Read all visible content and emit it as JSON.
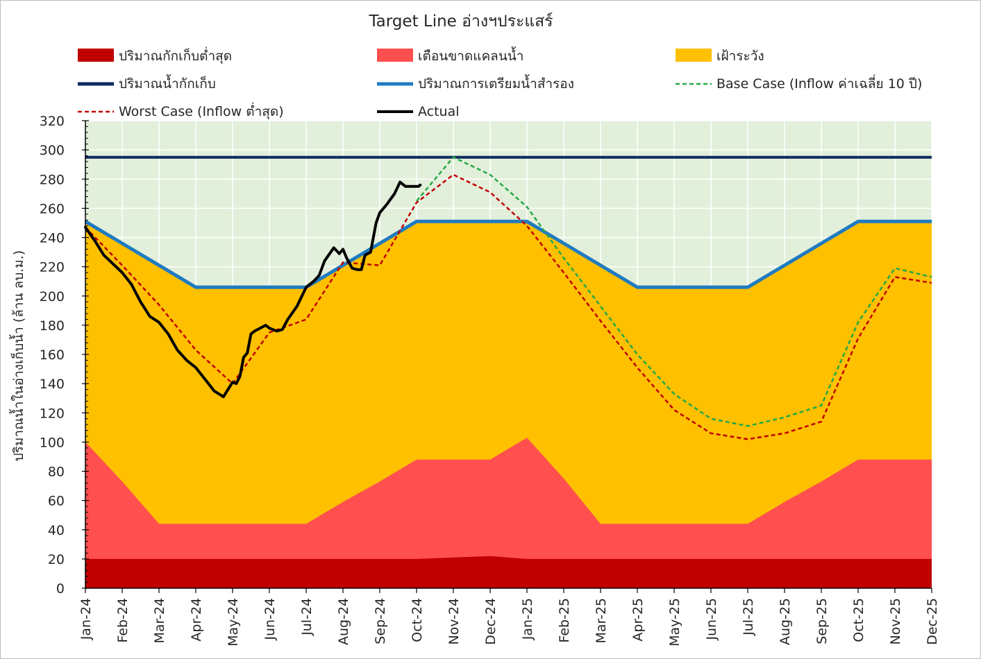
{
  "chart_data": {
    "type": "area",
    "title": "Target Line อ่างฯประแสร์",
    "xlabel": "",
    "ylabel": "ปริมาณน้ำในอ่างเก็บน้ำ (ล้าน ลบ.ม.)",
    "ylim": [
      0,
      320
    ],
    "yticks": [
      0,
      20,
      40,
      60,
      80,
      100,
      120,
      140,
      160,
      180,
      200,
      220,
      240,
      260,
      280,
      300,
      320
    ],
    "categories": [
      "Jan-24",
      "Feb-24",
      "Mar-24",
      "Apr-24",
      "May-24",
      "Jun-24",
      "Jul-24",
      "Aug-24",
      "Sep-24",
      "Oct-24",
      "Nov-24",
      "Dec-24",
      "Jan-25",
      "Feb-25",
      "Mar-25",
      "Apr-25",
      "May-25",
      "Jun-25",
      "Jul-25",
      "Aug-25",
      "Sep-25",
      "Oct-25",
      "Nov-25",
      "Dec-25"
    ],
    "grid": true,
    "legend_position": "top",
    "legend_entries": [
      "ปริมาณกักเก็บต่ำสุด",
      "เตือนขาดแคลนน้ำ",
      "เฝ้าระวัง",
      "ปริมาณน้ำกักเก็บ",
      "ปริมาณการเตรียมน้ำสำรอง",
      "Base Case (Inflow ค่าเฉลี่ย 10 ปี)",
      "Worst Case (Inflow ต่ำสุด)",
      "Actual"
    ],
    "colors": {
      "plot_background": "#e2efda",
      "min_storage": "#c00000",
      "shortage_warning": "#ff4f4f",
      "watch": "#ffc000",
      "capacity": "#0d2a5e",
      "reserve": "#1f7bc1",
      "base_case": "#22a845",
      "worst_case": "#c00000",
      "actual": "#000000"
    },
    "series": [
      {
        "name": "ปริมาณกักเก็บต่ำสุด",
        "kind": "area",
        "values": [
          20,
          20,
          20,
          20,
          20,
          20,
          20,
          20,
          20,
          20,
          21,
          22,
          20,
          20,
          20,
          20,
          20,
          20,
          20,
          20,
          20,
          20,
          20,
          20
        ]
      },
      {
        "name": "เตือนขาดแคลนน้ำ",
        "kind": "area",
        "values": [
          100,
          73,
          44,
          44,
          44,
          44,
          44,
          59,
          73,
          88,
          88,
          88,
          103,
          75,
          44,
          44,
          44,
          44,
          44,
          59,
          73,
          88,
          88,
          88
        ]
      },
      {
        "name": "เฝ้าระวัง",
        "kind": "area",
        "values": [
          251,
          236,
          221,
          206,
          206,
          206,
          206,
          221,
          236,
          251,
          251,
          251,
          251,
          236,
          221,
          206,
          206,
          206,
          206,
          221,
          236,
          251,
          251,
          251
        ]
      },
      {
        "name": "ปริมาณน้ำกักเก็บ",
        "kind": "line",
        "values": [
          295,
          295,
          295,
          295,
          295,
          295,
          295,
          295,
          295,
          295,
          295,
          295,
          295,
          295,
          295,
          295,
          295,
          295,
          295,
          295,
          295,
          295,
          295,
          295
        ]
      },
      {
        "name": "ปริมาณการเตรียมน้ำสำรอง",
        "kind": "line",
        "values": [
          251,
          236,
          221,
          206,
          206,
          206,
          206,
          221,
          236,
          251,
          251,
          251,
          251,
          236,
          221,
          206,
          206,
          206,
          206,
          221,
          236,
          251,
          251,
          251
        ]
      },
      {
        "name": "Base Case (Inflow ค่าเฉลี่ย 10 ปี)",
        "kind": "dashed",
        "x": [
          9,
          10,
          11,
          12,
          13,
          14,
          15,
          16,
          17,
          18,
          19,
          20,
          21,
          22,
          23
        ],
        "values": [
          265,
          295,
          283,
          261,
          226,
          193,
          160,
          133,
          116,
          111,
          117,
          125,
          182,
          219,
          213
        ]
      },
      {
        "name": "Worst Case (Inflow ต่ำสุด)",
        "kind": "dashed",
        "x": [
          0,
          1,
          2,
          3,
          4,
          5,
          6,
          7,
          8,
          9,
          10,
          11,
          12,
          13,
          14,
          15,
          16,
          17,
          18,
          19,
          20,
          21,
          22,
          23
        ],
        "values": [
          247,
          221,
          194,
          163,
          140,
          175,
          184,
          223,
          221,
          264,
          283,
          271,
          248,
          216,
          183,
          151,
          122,
          106,
          102,
          106,
          114,
          171,
          213,
          209
        ]
      },
      {
        "name": "Actual",
        "kind": "line",
        "x": [
          0,
          0.25,
          0.5,
          0.75,
          1,
          1.25,
          1.5,
          1.75,
          2,
          2.25,
          2.5,
          2.75,
          3,
          3.25,
          3.5,
          3.75,
          4,
          4.1,
          4.2,
          4.3,
          4.4,
          4.5,
          4.6,
          4.75,
          4.9,
          5,
          5.2,
          5.35,
          5.5,
          5.75,
          6,
          6.2,
          6.35,
          6.5,
          6.75,
          6.9,
          7,
          7.1,
          7.25,
          7.4,
          7.5,
          7.6,
          7.75,
          7.9,
          8,
          8.2,
          8.4,
          8.55,
          8.7,
          8.8,
          8.9,
          9,
          9.05,
          9.1
        ],
        "values": [
          247,
          238,
          228,
          222,
          216,
          208,
          196,
          186,
          182,
          174,
          163,
          156,
          151,
          143,
          135,
          131,
          141,
          140,
          145,
          158,
          161,
          174,
          176,
          178,
          180,
          178,
          176,
          177,
          184,
          193,
          206,
          210,
          214,
          224,
          233,
          229,
          232,
          226,
          219,
          218,
          218,
          228,
          230,
          250,
          257,
          263,
          270,
          278,
          275,
          275,
          275,
          275,
          275,
          276
        ]
      }
    ]
  }
}
